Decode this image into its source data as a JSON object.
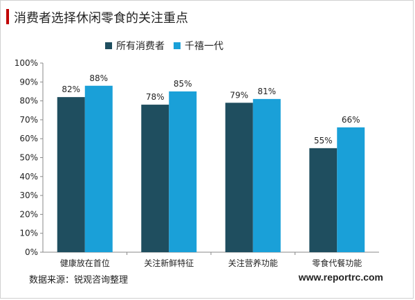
{
  "header": {
    "title": "消费者选择休闲零食的关注重点"
  },
  "footer": {
    "source": "数据来源：锐观咨询整理",
    "site": "www.reportrc.com"
  },
  "colors": {
    "series1": "#1f4e5f",
    "series2": "#1aa0d8",
    "accent": "#c00000"
  },
  "chart_data": {
    "type": "bar",
    "title": "消费者选择休闲零食的关注重点",
    "xlabel": "",
    "ylabel": "",
    "categories": [
      "健康放在首位",
      "关注新鲜特征",
      "关注营养功能",
      "零食代餐功能"
    ],
    "series": [
      {
        "name": "所有消费者",
        "values": [
          82,
          78,
          79,
          55
        ],
        "labels": [
          "82%",
          "78%",
          "79%",
          "55%"
        ]
      },
      {
        "name": "千禧一代",
        "values": [
          88,
          85,
          81,
          66
        ],
        "labels": [
          "88%",
          "85%",
          "81%",
          "66%"
        ]
      }
    ],
    "ylim": [
      0,
      100
    ],
    "yticks": [
      "0%",
      "10%",
      "20%",
      "30%",
      "40%",
      "50%",
      "60%",
      "70%",
      "80%",
      "90%",
      "100%"
    ],
    "legend_position": "top",
    "grid": false
  }
}
